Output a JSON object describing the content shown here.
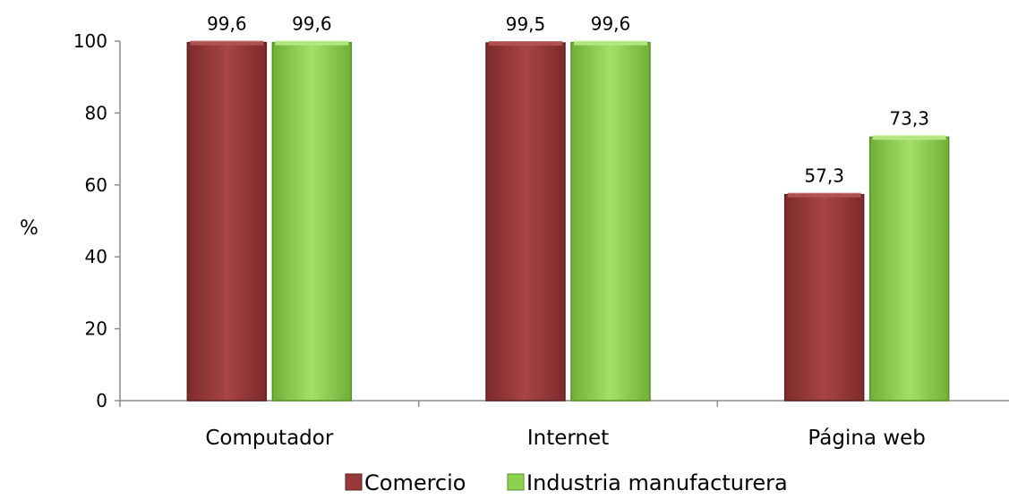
{
  "chart_data": {
    "type": "bar",
    "categories": [
      "Computador",
      "Internet",
      "Página web"
    ],
    "series": [
      {
        "name": "Comercio",
        "values": [
          99.6,
          99.5,
          57.3
        ],
        "labels": [
          "99,6",
          "99,5",
          "57,3"
        ],
        "color": "#983a3a"
      },
      {
        "name": "Industria manufacturera",
        "values": [
          99.6,
          99.6,
          73.3
        ],
        "labels": [
          "99,6",
          "99,6",
          "73,3"
        ],
        "color": "#8ed14f"
      }
    ],
    "ylabel": "%",
    "ylim": [
      0,
      100
    ],
    "yticks": [
      "0",
      "20",
      "40",
      "60",
      "80",
      "100"
    ],
    "grid": false,
    "legend_position": "bottom"
  }
}
